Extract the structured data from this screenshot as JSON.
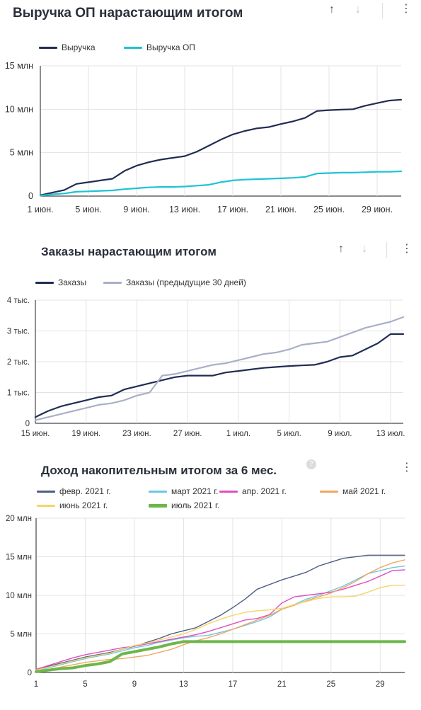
{
  "panels": [
    {
      "title": "Выручка ОП нарастающим итогом",
      "sort_up_icon": "arrow-up-icon",
      "sort_down_icon": "arrow-down-icon",
      "menu_icon": "more-vertical-icon"
    },
    {
      "title": "Заказы нарастающим итогом",
      "sort_up_icon": "arrow-up-icon",
      "sort_down_icon": "arrow-down-icon",
      "menu_icon": "more-vertical-icon"
    },
    {
      "title": "Доход накопительным итогом за 6 мес.",
      "help_icon": "help-circle-icon",
      "help_text": "?",
      "menu_icon": "more-vertical-icon"
    }
  ],
  "chart_data": [
    {
      "type": "line",
      "title": "Выручка ОП нарастающим итогом",
      "x_ticks": [
        "1 июн.",
        "5 июн.",
        "9 июн.",
        "13 июн.",
        "17 июн.",
        "21 июн.",
        "25 июн.",
        "29 июн."
      ],
      "y_ticks": [
        "0",
        "5 млн",
        "10 млн",
        "15 млн"
      ],
      "ylim": [
        0,
        15
      ],
      "xlim": [
        1,
        31
      ],
      "grid": true,
      "legend_position": "top-left",
      "series": [
        {
          "name": "Выручка",
          "color": "#1f2d52",
          "x": [
            1,
            2,
            3,
            4,
            5,
            6,
            7,
            8,
            9,
            10,
            11,
            12,
            13,
            14,
            15,
            16,
            17,
            18,
            19,
            20,
            21,
            22,
            23,
            24,
            25,
            26,
            27,
            28,
            29,
            30,
            31
          ],
          "values": [
            0.1,
            0.4,
            0.7,
            1.4,
            1.6,
            1.8,
            2.0,
            2.9,
            3.5,
            3.9,
            4.2,
            4.4,
            4.6,
            5.1,
            5.8,
            6.5,
            7.1,
            7.5,
            7.8,
            7.95,
            8.3,
            8.6,
            9.0,
            9.8,
            9.9,
            9.95,
            10.0,
            10.4,
            10.7,
            11.0,
            11.1
          ],
          "unit": "млн"
        },
        {
          "name": "Выручка ОП",
          "color": "#1ec3d4",
          "x": [
            1,
            2,
            3,
            4,
            5,
            6,
            7,
            8,
            9,
            10,
            11,
            12,
            13,
            14,
            15,
            16,
            17,
            18,
            19,
            20,
            21,
            22,
            23,
            24,
            25,
            26,
            27,
            28,
            29,
            30,
            31
          ],
          "values": [
            0.05,
            0.2,
            0.3,
            0.5,
            0.55,
            0.6,
            0.65,
            0.8,
            0.9,
            1.0,
            1.05,
            1.05,
            1.1,
            1.2,
            1.3,
            1.6,
            1.8,
            1.9,
            1.95,
            2.0,
            2.05,
            2.1,
            2.2,
            2.6,
            2.65,
            2.7,
            2.7,
            2.75,
            2.8,
            2.8,
            2.85
          ],
          "unit": "млн"
        }
      ]
    },
    {
      "type": "line",
      "title": "Заказы нарастающим итогом",
      "x_ticks": [
        "15 июн.",
        "19 июн.",
        "23 июн.",
        "27 июн.",
        "1 июл.",
        "5 июл.",
        "9 июл.",
        "13 июл."
      ],
      "y_ticks": [
        "0",
        "1 тыс.",
        "2 тыс.",
        "3 тыс.",
        "4 тыс."
      ],
      "ylim": [
        0,
        4
      ],
      "xlim": [
        0,
        29
      ],
      "grid": true,
      "legend_position": "top-left",
      "series": [
        {
          "name": "Заказы",
          "color": "#1f2d52",
          "x": [
            0,
            1,
            2,
            3,
            4,
            5,
            6,
            7,
            8,
            9,
            10,
            11,
            12,
            13,
            14,
            15,
            16,
            17,
            18,
            19,
            20,
            21,
            22,
            23,
            24,
            25,
            26,
            27,
            28,
            29
          ],
          "values": [
            0.2,
            0.4,
            0.55,
            0.65,
            0.75,
            0.85,
            0.9,
            1.1,
            1.2,
            1.3,
            1.4,
            1.5,
            1.55,
            1.55,
            1.55,
            1.65,
            1.7,
            1.75,
            1.8,
            1.83,
            1.86,
            1.88,
            1.9,
            2.0,
            2.15,
            2.2,
            2.4,
            2.6,
            2.9,
            2.9
          ],
          "unit": "тыс."
        },
        {
          "name": "Заказы (предыдущие 30 дней)",
          "color": "#a8b0c5",
          "x": [
            0,
            1,
            2,
            3,
            4,
            5,
            6,
            7,
            8,
            9,
            10,
            11,
            12,
            13,
            14,
            15,
            16,
            17,
            18,
            19,
            20,
            21,
            22,
            23,
            24,
            25,
            26,
            27,
            28,
            29
          ],
          "values": [
            0.1,
            0.2,
            0.3,
            0.4,
            0.5,
            0.6,
            0.65,
            0.75,
            0.9,
            1.0,
            1.55,
            1.6,
            1.7,
            1.8,
            1.9,
            1.95,
            2.05,
            2.15,
            2.25,
            2.3,
            2.4,
            2.55,
            2.6,
            2.65,
            2.8,
            2.95,
            3.1,
            3.2,
            3.3,
            3.45
          ],
          "unit": "тыс."
        }
      ]
    },
    {
      "type": "line",
      "title": "Доход накопительным итогом за 6 мес.",
      "x_ticks": [
        "1",
        "5",
        "9",
        "13",
        "17",
        "21",
        "25",
        "29"
      ],
      "y_ticks": [
        "0",
        "5 млн",
        "10 млн",
        "15 млн",
        "20 млн"
      ],
      "ylim": [
        0,
        20
      ],
      "xlim": [
        1,
        31
      ],
      "grid": true,
      "legend_position": "top-left",
      "series": [
        {
          "name": "февр. 2021 г.",
          "color": "#4e5f86",
          "x": [
            1,
            2,
            3,
            4,
            5,
            6,
            7,
            8,
            9,
            10,
            11,
            12,
            13,
            14,
            15,
            16,
            17,
            18,
            19,
            20,
            21,
            22,
            23,
            24,
            25,
            26,
            27,
            28,
            29,
            30,
            31
          ],
          "values": [
            0.3,
            0.8,
            1.2,
            1.6,
            2.0,
            2.3,
            2.6,
            3.0,
            3.4,
            3.9,
            4.4,
            5.0,
            5.4,
            5.8,
            6.6,
            7.4,
            8.4,
            9.5,
            10.8,
            11.4,
            12.0,
            12.5,
            13.0,
            13.8,
            14.3,
            14.8,
            15.0,
            15.2,
            15.2,
            15.2,
            15.2
          ]
        },
        {
          "name": "март 2021 г.",
          "color": "#6fc7e0",
          "x": [
            1,
            2,
            3,
            4,
            5,
            6,
            7,
            8,
            9,
            10,
            11,
            12,
            13,
            14,
            15,
            16,
            17,
            18,
            19,
            20,
            21,
            22,
            23,
            24,
            25,
            26,
            27,
            28,
            29,
            30,
            31
          ],
          "values": [
            0.3,
            0.6,
            1.0,
            1.4,
            1.8,
            2.1,
            2.4,
            2.8,
            3.2,
            3.5,
            3.9,
            4.2,
            4.5,
            4.7,
            4.8,
            5.2,
            5.6,
            6.1,
            6.6,
            7.2,
            8.2,
            8.8,
            9.5,
            10.0,
            10.6,
            11.2,
            12.0,
            12.8,
            13.2,
            13.6,
            13.8
          ]
        },
        {
          "name": "апр. 2021 г.",
          "color": "#e14fc0",
          "x": [
            1,
            2,
            3,
            4,
            5,
            6,
            7,
            8,
            9,
            10,
            11,
            12,
            13,
            14,
            15,
            16,
            17,
            18,
            19,
            20,
            21,
            22,
            23,
            24,
            25,
            26,
            27,
            28,
            29,
            30,
            31
          ],
          "values": [
            0.4,
            0.9,
            1.4,
            1.9,
            2.3,
            2.6,
            2.9,
            3.2,
            3.4,
            3.7,
            4.0,
            4.3,
            4.6,
            4.9,
            5.3,
            5.8,
            6.3,
            6.8,
            7.0,
            7.5,
            9.0,
            9.8,
            10.0,
            10.2,
            10.4,
            10.8,
            11.3,
            11.8,
            12.5,
            13.2,
            13.3
          ]
        },
        {
          "name": "май 2021 г.",
          "color": "#f0a860",
          "x": [
            1,
            2,
            3,
            4,
            5,
            6,
            7,
            8,
            9,
            10,
            11,
            12,
            13,
            14,
            15,
            16,
            17,
            18,
            19,
            20,
            21,
            22,
            23,
            24,
            25,
            26,
            27,
            28,
            29,
            30,
            31
          ],
          "values": [
            0.2,
            0.4,
            0.7,
            1.0,
            1.3,
            1.5,
            1.7,
            1.8,
            2.0,
            2.2,
            2.6,
            3.0,
            3.6,
            4.1,
            4.5,
            5.0,
            5.6,
            6.2,
            6.8,
            7.4,
            8.2,
            8.7,
            9.3,
            9.8,
            10.3,
            11.0,
            11.8,
            12.8,
            13.6,
            14.2,
            14.6
          ]
        },
        {
          "name": "июнь 2021 г.",
          "color": "#f3d56a",
          "x": [
            1,
            2,
            3,
            4,
            5,
            6,
            7,
            8,
            9,
            10,
            11,
            12,
            13,
            14,
            15,
            16,
            17,
            18,
            19,
            20,
            21,
            22,
            23,
            24,
            25,
            26,
            27,
            28,
            29,
            30,
            31
          ],
          "values": [
            0.3,
            0.7,
            1.1,
            1.5,
            1.9,
            2.2,
            2.5,
            3.0,
            3.5,
            3.8,
            4.2,
            4.6,
            5.0,
            5.6,
            6.3,
            6.9,
            7.4,
            7.8,
            8.0,
            8.1,
            8.3,
            8.8,
            9.2,
            9.6,
            9.8,
            9.8,
            9.9,
            10.4,
            11.0,
            11.3,
            11.3
          ]
        },
        {
          "name": "июль 2021 г.",
          "color": "#6db64a",
          "thick": true,
          "x": [
            1,
            2,
            3,
            4,
            5,
            6,
            7,
            8,
            9,
            10,
            11,
            12,
            13,
            14,
            15,
            16,
            17,
            18,
            19,
            20,
            21,
            22,
            23,
            24,
            25,
            26,
            27,
            28,
            29,
            30,
            31
          ],
          "values": [
            0.1,
            0.3,
            0.5,
            0.6,
            0.9,
            1.1,
            1.4,
            2.4,
            2.7,
            3.0,
            3.3,
            3.7,
            4.0,
            4.0,
            4.0,
            4.0,
            4.0,
            4.0,
            4.0,
            4.0,
            4.0,
            4.0,
            4.0,
            4.0,
            4.0,
            4.0,
            4.0,
            4.0,
            4.0,
            4.0,
            4.0
          ]
        }
      ]
    }
  ]
}
